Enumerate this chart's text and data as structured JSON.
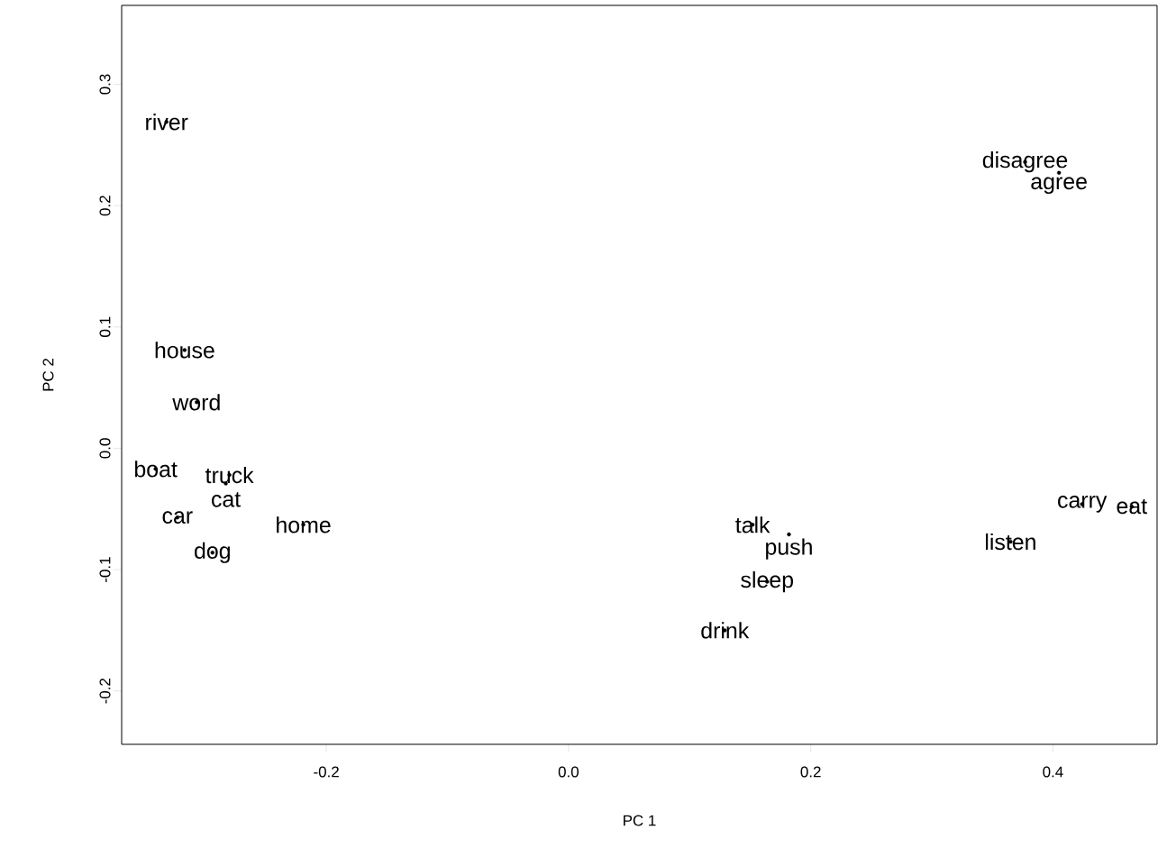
{
  "chart_data": {
    "type": "scatter",
    "xlabel": "PC 1",
    "ylabel": "PC 2",
    "x": [
      -0.332,
      0.377,
      0.405,
      -0.317,
      -0.307,
      -0.341,
      -0.28,
      -0.283,
      -0.323,
      -0.219,
      -0.294,
      0.152,
      0.182,
      0.164,
      0.129,
      0.424,
      0.465,
      0.365
    ],
    "values": [
      0.269,
      0.236,
      0.227,
      0.081,
      0.038,
      -0.017,
      -0.022,
      -0.029,
      -0.057,
      -0.063,
      -0.086,
      -0.063,
      -0.071,
      -0.11,
      -0.15,
      -0.046,
      -0.048,
      -0.077
    ],
    "value_labels": [
      "river",
      "disagree",
      "agree",
      "house",
      "word",
      "boat",
      "truck",
      "cat",
      "car",
      "home",
      "dog",
      "talk",
      "push",
      "sleep",
      "drink",
      "carry",
      "eat",
      "listen"
    ],
    "marker": "none",
    "color": "#000000",
    "xlim": [
      -0.369,
      0.486
    ],
    "ylim": [
      -0.244,
      0.365
    ],
    "xticks": [
      {
        "value": -0.2,
        "label": "-0.2"
      },
      {
        "value": 0,
        "label": "0.0"
      },
      {
        "value": 0.2,
        "label": "0.2"
      },
      {
        "value": 0.4,
        "label": "0.4"
      }
    ],
    "yticks": [
      {
        "value": -0.2,
        "label": "-0.2"
      },
      {
        "value": -0.1,
        "label": "-0.1"
      },
      {
        "value": 0,
        "label": "0.0"
      },
      {
        "value": 0.1,
        "label": "0.1"
      },
      {
        "value": 0.2,
        "label": "0.2"
      },
      {
        "value": 0.3,
        "label": "0.3"
      }
    ]
  }
}
